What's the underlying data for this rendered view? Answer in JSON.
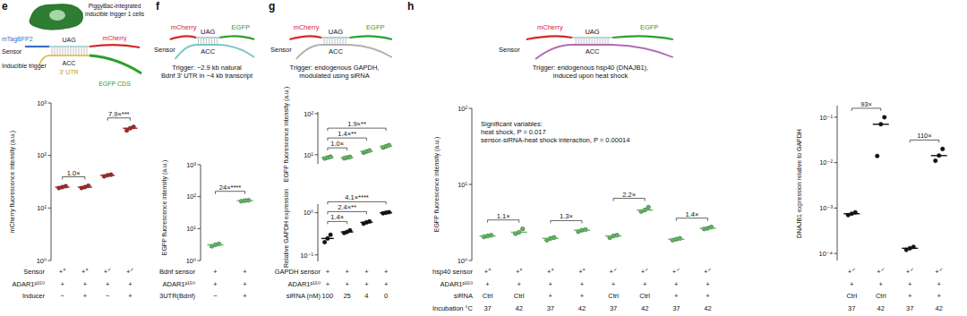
{
  "chart_data": [
    {
      "panel": "e",
      "type": "scatter",
      "schematic": [
        "PiggyBac-integrated",
        "inducible trigger 1 cells",
        "mTagBFP2",
        "Sensor",
        "Inducible trigger",
        "UAG",
        "ACC",
        "3′ UTR",
        "mCherry",
        "EGFP CDS"
      ],
      "y_label": "mCherry fluorescence intensity (a.u.)",
      "log": "y",
      "ylim": [
        1,
        1000
      ],
      "yticks": [
        {
          "value": 1,
          "label": "10⁰"
        },
        {
          "value": 10,
          "label": "10¹"
        },
        {
          "value": 100,
          "label": "10²"
        },
        {
          "value": 1000,
          "label": "10³"
        }
      ],
      "categories": [
        null,
        null,
        null,
        null
      ],
      "values": [
        25,
        25,
        42,
        330
      ],
      "points": [
        [
          24,
          25,
          26
        ],
        [
          24,
          25,
          26.5
        ],
        [
          40,
          42,
          43
        ],
        [
          300,
          330,
          350
        ]
      ],
      "color": "#a4282a",
      "brackets": [
        {
          "from": 0,
          "to": 1,
          "label": "1.0×"
        },
        {
          "from": 2,
          "to": 3,
          "label": "7.9×***"
        }
      ],
      "conditions": [
        {
          "name": "Sensor",
          "values": [
            "+×",
            "+×",
            "+✓",
            "+✓"
          ]
        },
        {
          "name": "ADAR1ᵖ¹⁵⁰",
          "values": [
            "+",
            "+",
            "+",
            "+"
          ]
        },
        {
          "name": "Inducer",
          "values": [
            "−",
            "+",
            "−",
            "+"
          ]
        }
      ]
    },
    {
      "panel": "f",
      "type": "scatter",
      "schematic": [
        "mCherry",
        "Sensor",
        "UAG",
        "ACC",
        "EGFP"
      ],
      "title": [
        "Trigger: ~2.9 kb natural",
        "Bdnf 3′ UTR in ~4 kb transcript"
      ],
      "y_label": "EGFP fluorescence intensity (a.u.)",
      "log": "y",
      "ylim": [
        1,
        1000
      ],
      "yticks": [
        {
          "value": 1,
          "label": "10⁰"
        },
        {
          "value": 10,
          "label": "10¹"
        },
        {
          "value": 100,
          "label": "10²"
        },
        {
          "value": 1000,
          "label": "10³"
        }
      ],
      "categories": [
        null,
        null
      ],
      "values": [
        3.1,
        75
      ],
      "points": [
        [
          2.8,
          3.1,
          3.3
        ],
        [
          72,
          75,
          77
        ]
      ],
      "color": "#5cb85c",
      "brackets": [
        {
          "from": 0,
          "to": 1,
          "label": "24×****"
        }
      ],
      "conditions": [
        {
          "name": "Bdnf sensor",
          "values": [
            "+",
            "+"
          ]
        },
        {
          "name": "ADAR1ᵖ¹⁵⁰",
          "values": [
            "+",
            "+"
          ]
        },
        {
          "name": "3UTR(Bdnf)",
          "values": [
            "−",
            "+"
          ]
        }
      ]
    },
    {
      "panel": "g",
      "type": "scatter",
      "schematic": [
        "mCherry",
        "Sensor",
        "UAG",
        "ACC",
        "EGFP"
      ],
      "title": [
        "Trigger: endogenous GAPDH,",
        "modulated using siRNA"
      ],
      "y_label": "EGFP fluorescence intensity (a.u.)",
      "log": "y",
      "ylim": [
        6,
        110
      ],
      "yticks": [
        {
          "value": 10,
          "label": "10¹"
        },
        {
          "value": 100,
          "label": "10²"
        }
      ],
      "categories": [
        null,
        null,
        null,
        null
      ],
      "values": [
        8.5,
        8.5,
        12,
        16
      ],
      "points": [
        [
          8.1,
          8.5,
          8.9
        ],
        [
          8.2,
          8.5,
          8.8
        ],
        [
          11.3,
          12,
          12.6
        ],
        [
          15,
          16,
          17
        ]
      ],
      "color": "#5cb85c",
      "brackets": [
        {
          "from": 0,
          "to": 1,
          "label": "1.0×"
        },
        {
          "from": 0,
          "to": 2,
          "label": "1.4×**"
        },
        {
          "from": 0,
          "to": 3,
          "label": "1.9×**"
        }
      ]
    },
    {
      "type": "scatter",
      "y_label": "Relative GAPDH expression",
      "log": "y",
      "ylim": [
        0.07,
        1.6
      ],
      "yticks": [
        {
          "value": 0.1,
          "label": "10⁻¹"
        },
        {
          "value": 1,
          "label": "10⁰"
        }
      ],
      "categories": [
        null,
        null,
        null,
        null
      ],
      "values": [
        0.245,
        0.35,
        0.59,
        1.0
      ],
      "points": [
        [
          0.2,
          0.245,
          0.3
        ],
        [
          0.33,
          0.35,
          0.38
        ],
        [
          0.55,
          0.59,
          0.62
        ],
        [
          0.97,
          1.0,
          1.03
        ]
      ],
      "color": "#111111",
      "brackets": [
        {
          "from": 0,
          "to": 1,
          "label": "1.4×"
        },
        {
          "from": 0,
          "to": 2,
          "label": "2.4×**"
        },
        {
          "from": 0,
          "to": 3,
          "label": "4.1×****"
        }
      ],
      "conditions": [
        {
          "name": "GAPDH sensor",
          "values": [
            "+",
            "+",
            "+",
            "+"
          ]
        },
        {
          "name": "ADAR1ᵖ¹⁵⁰",
          "values": [
            "+",
            "+",
            "+",
            "+"
          ]
        },
        {
          "name": "siRNA (nM)",
          "values": [
            "100",
            "25",
            "4",
            "0"
          ]
        }
      ]
    },
    {
      "panel": "h",
      "type": "scatter",
      "schematic": [
        "mCherry",
        "Sensor",
        "UAG",
        "ACC",
        "EGFP"
      ],
      "title": [
        "Trigger: endogenous hsp40 (DNAJB1),",
        "induced upon heat shock"
      ],
      "annotations": [
        "Significant variables:",
        "heat shock, P = 0.017",
        "sensor-siRNA-heat shock interaction, P = 0.00014"
      ],
      "y_label": "EGFP fluorescence intensity (a.u.)",
      "log": "y",
      "ylim": [
        1,
        100
      ],
      "yticks": [
        {
          "value": 1,
          "label": "10⁰"
        },
        {
          "value": 10,
          "label": "10¹"
        },
        {
          "value": 100,
          "label": "10²"
        }
      ],
      "categories": [
        null,
        null,
        null,
        null,
        null,
        null,
        null,
        null
      ],
      "values": [
        2.1,
        2.35,
        1.95,
        2.5,
        2.1,
        4.6,
        1.9,
        2.65
      ],
      "points": [
        [
          2.05,
          2.1,
          2.15
        ],
        [
          2.25,
          2.35,
          2.6
        ],
        [
          1.85,
          1.95,
          2.0
        ],
        [
          2.4,
          2.5,
          2.55
        ],
        [
          2.0,
          2.1,
          2.15
        ],
        [
          4.4,
          4.6,
          5.0
        ],
        [
          1.85,
          1.9,
          1.95
        ],
        [
          2.6,
          2.65,
          2.75
        ]
      ],
      "color": "#5cb85c",
      "brackets": [
        {
          "from": 0,
          "to": 1,
          "label": "1.1×"
        },
        {
          "from": 2,
          "to": 3,
          "label": "1.3×"
        },
        {
          "from": 4,
          "to": 5,
          "label": "2.2×"
        },
        {
          "from": 6,
          "to": 7,
          "label": "1.4×"
        }
      ],
      "conditions": [
        {
          "name": "hsp40 sensor",
          "values": [
            "+×",
            "+×",
            "+×",
            "+×",
            "+✓",
            "+✓",
            "+✓",
            "+✓"
          ]
        },
        {
          "name": "ADAR1ᵖ¹⁵⁰",
          "values": [
            "+",
            "+",
            "+",
            "+",
            "+",
            "+",
            "+",
            "+"
          ]
        },
        {
          "name": "siRNA",
          "values": [
            "Ctrl",
            "Ctrl",
            "+",
            "+",
            "Ctrl",
            "Ctrl",
            "+",
            "+"
          ]
        },
        {
          "name": "Incubation °C",
          "values": [
            "37",
            "42",
            "37",
            "42",
            "37",
            "42",
            "37",
            "42"
          ]
        }
      ]
    },
    {
      "type": "scatter",
      "y_label": "DNAJB1 expression relative to GAPDH",
      "log": "y",
      "ylim": [
        7e-05,
        0.18
      ],
      "yticks": [
        {
          "value": 0.0001,
          "label": "10⁻⁴"
        },
        {
          "value": 0.001,
          "label": "10⁻³"
        },
        {
          "value": 0.01,
          "label": "10⁻²"
        },
        {
          "value": 0.1,
          "label": "10⁻¹"
        }
      ],
      "categories": [
        null,
        null,
        null,
        null
      ],
      "values": [
        0.00075,
        0.07,
        0.00013,
        0.0143
      ],
      "points": [
        [
          0.0007,
          0.00075,
          0.0008
        ],
        [
          0.014,
          0.07,
          0.1
        ],
        [
          0.00012,
          0.00013,
          0.00014
        ],
        [
          0.011,
          0.0143,
          0.02
        ]
      ],
      "color": "#111111",
      "brackets": [
        {
          "from": 0,
          "to": 1,
          "label": "93×"
        },
        {
          "from": 2,
          "to": 3,
          "label": "110×"
        }
      ],
      "conditions": [
        {
          "values": [
            "+✓",
            "+✓",
            "+✓",
            "+✓"
          ]
        },
        {
          "values": [
            "+",
            "+",
            "+",
            "+"
          ]
        },
        {
          "values": [
            "Ctrl",
            "Ctrl",
            "+",
            "+"
          ]
        },
        {
          "values": [
            "37",
            "42",
            "37",
            "42"
          ]
        }
      ]
    }
  ]
}
